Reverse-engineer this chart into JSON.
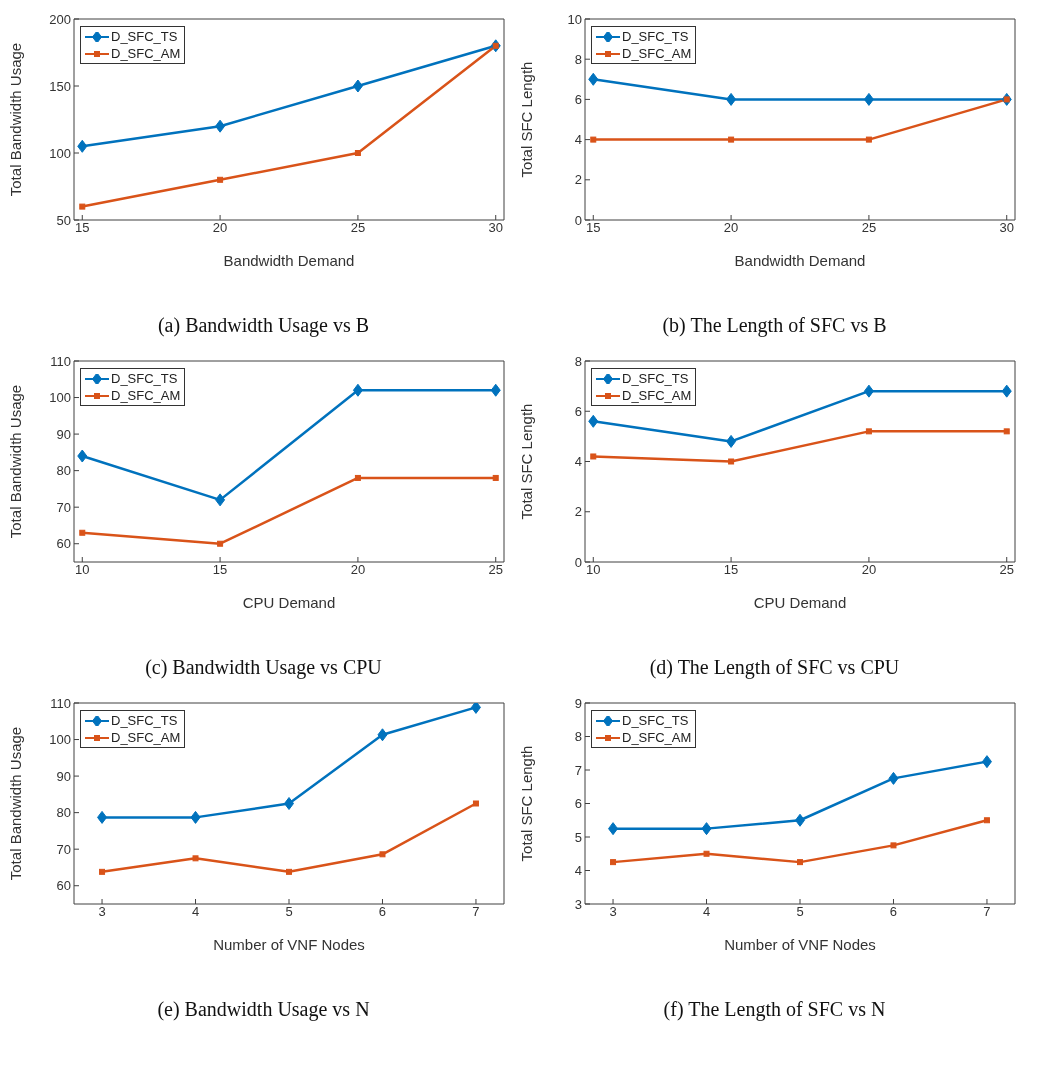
{
  "chart_data": [
    {
      "type": "line",
      "title": "(a) Bandwidth Usage vs B",
      "xlabel": "Bandwidth Demand",
      "ylabel": "Total Bandwidth Usage",
      "x": [
        15,
        20,
        25,
        30
      ],
      "xlim": [
        14.7,
        30.3
      ],
      "xticks": [
        15,
        20,
        25,
        30
      ],
      "ylim": [
        50,
        200
      ],
      "yticks": [
        50,
        100,
        150,
        200
      ],
      "legend": "top left",
      "grid": false,
      "series": [
        {
          "name": "D_SFC_TS",
          "color": "#0072bd",
          "marker": "diamond",
          "values": [
            105,
            120,
            150,
            180
          ]
        },
        {
          "name": "D_SFC_AM",
          "color": "#d95319",
          "marker": "square",
          "values": [
            60,
            80,
            100,
            180
          ]
        }
      ]
    },
    {
      "type": "line",
      "title": "(b) The Length of SFC vs B",
      "xlabel": "Bandwidth Demand",
      "ylabel": "Total SFC Length",
      "x": [
        15,
        20,
        25,
        30
      ],
      "xlim": [
        14.7,
        30.3
      ],
      "xticks": [
        15,
        20,
        25,
        30
      ],
      "ylim": [
        0,
        10
      ],
      "yticks": [
        0,
        2,
        4,
        6,
        8,
        10
      ],
      "legend": "top left",
      "grid": false,
      "series": [
        {
          "name": "D_SFC_TS",
          "color": "#0072bd",
          "marker": "diamond",
          "values": [
            7,
            6,
            6,
            6
          ]
        },
        {
          "name": "D_SFC_AM",
          "color": "#d95319",
          "marker": "square",
          "values": [
            4,
            4,
            4,
            6
          ]
        }
      ]
    },
    {
      "type": "line",
      "title": "(c) Bandwidth Usage vs CPU",
      "xlabel": "CPU Demand",
      "ylabel": "Total Bandwidth Usage",
      "x": [
        10,
        15,
        20,
        25
      ],
      "xlim": [
        9.7,
        25.3
      ],
      "xticks": [
        10,
        15,
        20,
        25
      ],
      "ylim": [
        55,
        110
      ],
      "yticks": [
        60,
        70,
        80,
        90,
        100,
        110
      ],
      "legend": "top left",
      "grid": false,
      "series": [
        {
          "name": "D_SFC_TS",
          "color": "#0072bd",
          "marker": "diamond",
          "values": [
            84,
            72,
            102,
            102
          ]
        },
        {
          "name": "D_SFC_AM",
          "color": "#d95319",
          "marker": "square",
          "values": [
            63,
            60,
            78,
            78
          ]
        }
      ]
    },
    {
      "type": "line",
      "title": "(d) The Length of SFC vs CPU",
      "xlabel": "CPU Demand",
      "ylabel": "Total SFC Length",
      "x": [
        10,
        15,
        20,
        25
      ],
      "xlim": [
        9.7,
        25.3
      ],
      "xticks": [
        10,
        15,
        20,
        25
      ],
      "ylim": [
        0,
        8
      ],
      "yticks": [
        0,
        2,
        4,
        6,
        8
      ],
      "legend": "top left",
      "grid": false,
      "series": [
        {
          "name": "D_SFC_TS",
          "color": "#0072bd",
          "marker": "diamond",
          "values": [
            5.6,
            4.8,
            6.8,
            6.8
          ]
        },
        {
          "name": "D_SFC_AM",
          "color": "#d95319",
          "marker": "square",
          "values": [
            4.2,
            4.0,
            5.2,
            5.2
          ]
        }
      ]
    },
    {
      "type": "line",
      "title": "(e) Bandwidth Usage vs N",
      "xlabel": "Number of VNF Nodes",
      "ylabel": "Total Bandwidth Usage",
      "x": [
        3,
        4,
        5,
        6,
        7
      ],
      "xlim": [
        2.7,
        7.3
      ],
      "xticks": [
        3,
        4,
        5,
        6,
        7
      ],
      "ylim": [
        55,
        110
      ],
      "yticks": [
        60,
        70,
        80,
        90,
        100,
        110
      ],
      "legend": "top left",
      "grid": false,
      "series": [
        {
          "name": "D_SFC_TS",
          "color": "#0072bd",
          "marker": "diamond",
          "values": [
            78.7,
            78.7,
            82.5,
            101.3,
            108.8
          ]
        },
        {
          "name": "D_SFC_AM",
          "color": "#d95319",
          "marker": "square",
          "values": [
            63.8,
            67.5,
            63.8,
            68.6,
            82.5
          ]
        }
      ]
    },
    {
      "type": "line",
      "title": "(f) The Length of SFC vs N",
      "xlabel": "Number of VNF Nodes",
      "ylabel": "Total SFC Length",
      "x": [
        3,
        4,
        5,
        6,
        7
      ],
      "xlim": [
        2.7,
        7.3
      ],
      "xticks": [
        3,
        4,
        5,
        6,
        7
      ],
      "ylim": [
        3,
        9
      ],
      "yticks": [
        3,
        4,
        5,
        6,
        7,
        8,
        9
      ],
      "legend": "top left",
      "grid": false,
      "series": [
        {
          "name": "D_SFC_TS",
          "color": "#0072bd",
          "marker": "diamond",
          "values": [
            5.25,
            5.25,
            5.5,
            6.75,
            7.25
          ]
        },
        {
          "name": "D_SFC_AM",
          "color": "#d95319",
          "marker": "square",
          "values": [
            4.25,
            4.5,
            4.25,
            4.75,
            5.5
          ]
        }
      ]
    }
  ]
}
